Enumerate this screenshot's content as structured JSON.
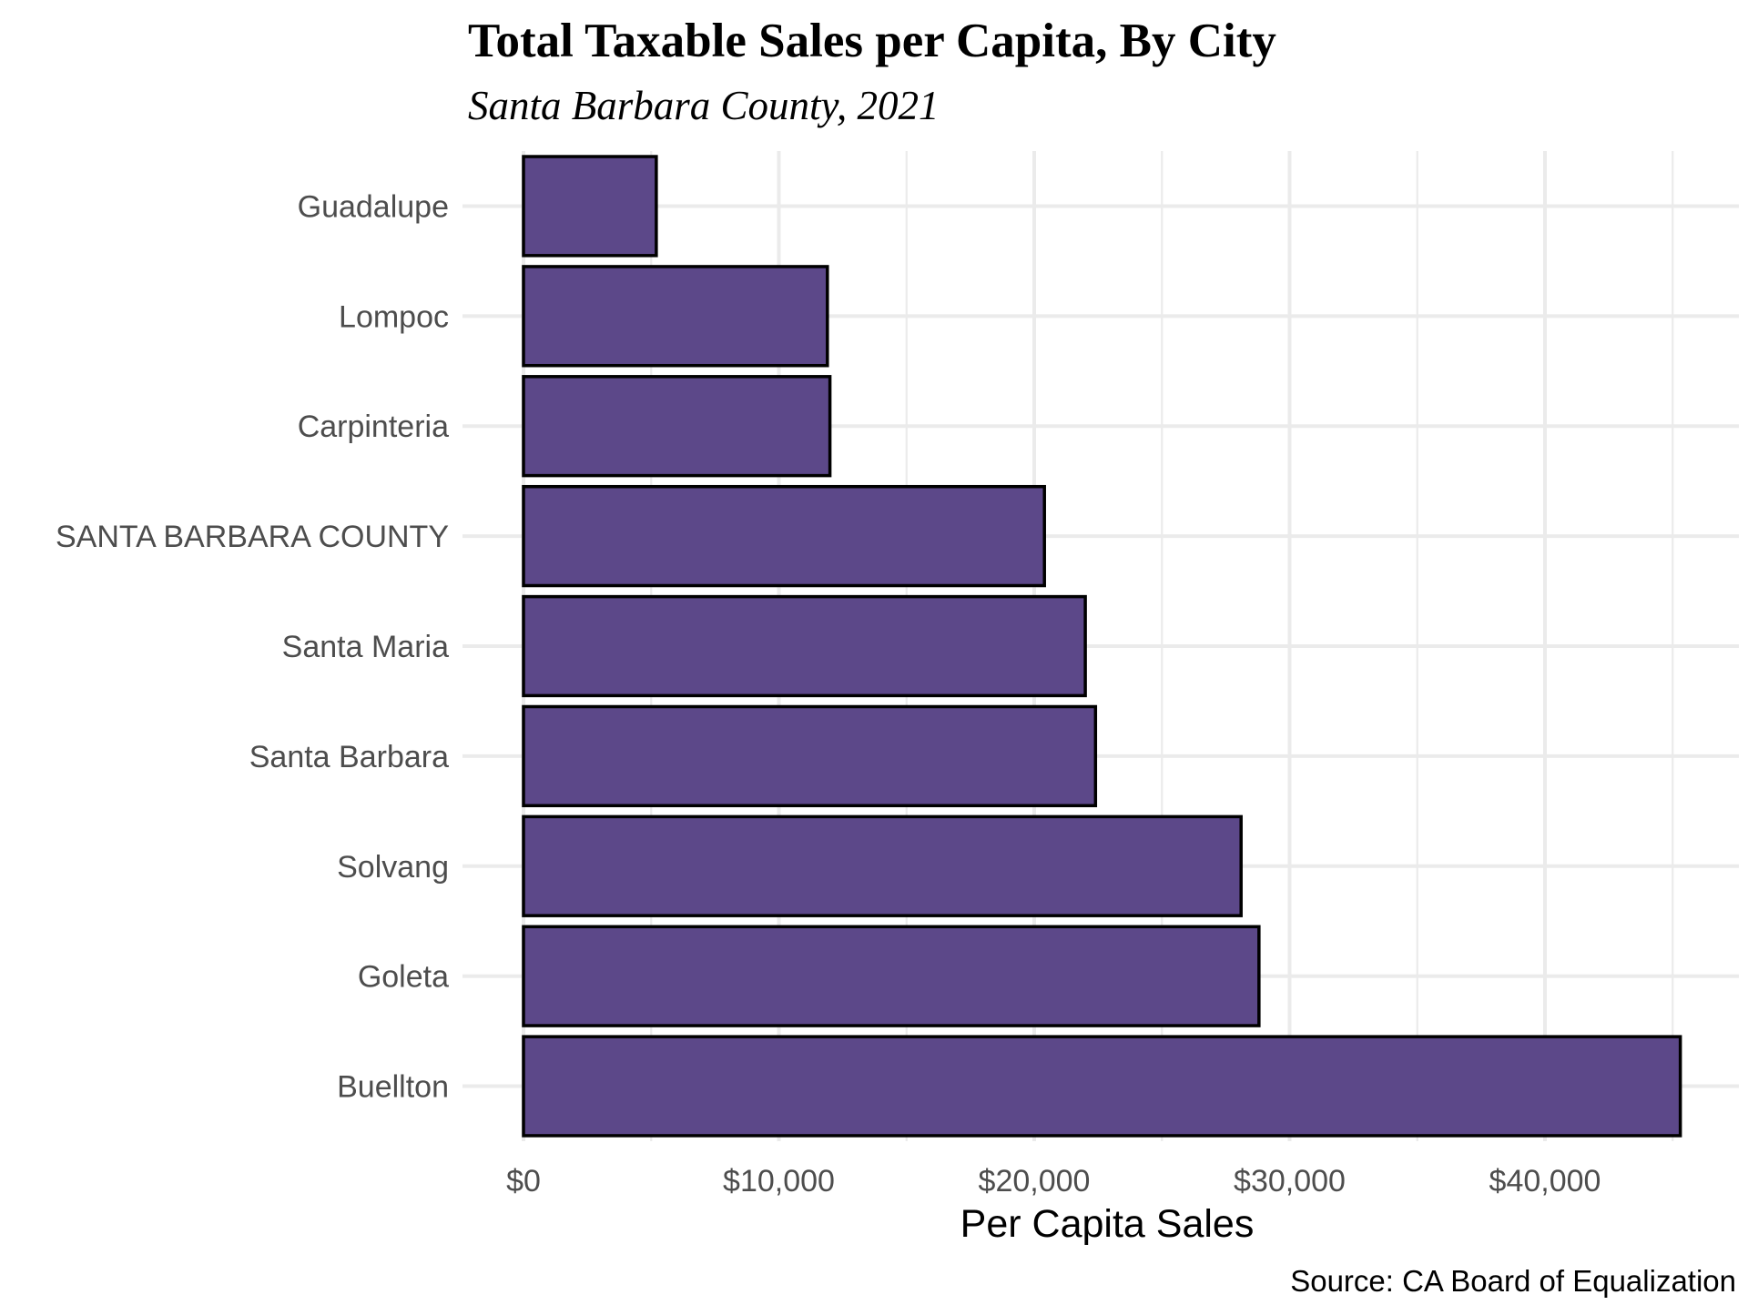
{
  "chart_data": {
    "type": "bar",
    "orientation": "horizontal",
    "title": "Total Taxable Sales per Capita, By City",
    "subtitle": "Santa Barbara County, 2021",
    "xlabel": "Per Capita Sales",
    "ylabel": "",
    "caption": "Source: CA Board of Equalization",
    "categories": [
      "Guadalupe",
      "Lompoc",
      "Carpinteria",
      "SANTA BARBARA COUNTY",
      "Santa Maria",
      "Santa Barbara",
      "Solvang",
      "Goleta",
      "Buellton"
    ],
    "values": [
      5200,
      11900,
      12000,
      20400,
      22000,
      22400,
      28100,
      28800,
      45300
    ],
    "xlim": [
      0,
      47000
    ],
    "x_ticks": [
      0,
      10000,
      20000,
      30000,
      40000
    ],
    "x_tick_labels": [
      "$0",
      "$10,000",
      "$20,000",
      "$30,000",
      "$40,000"
    ],
    "grid": true,
    "legend": "none",
    "colors": {
      "bar_fill": "#5c4889",
      "bar_stroke": "#000000",
      "grid": "#ebebeb",
      "tick_text": "#4d4d4d"
    }
  }
}
